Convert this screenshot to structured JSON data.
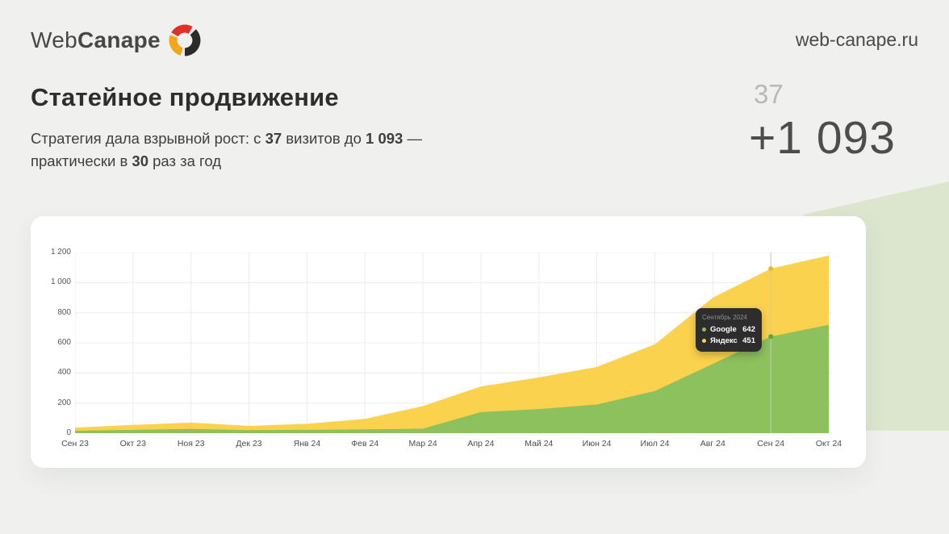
{
  "header": {
    "logo_web": "Web",
    "logo_canape": "Canape",
    "site_url": "web-canape.ru"
  },
  "title": "Статейное продвижение",
  "subtitle": {
    "parts": [
      {
        "text": "Стратегия дала взрывной рост: с ",
        "bold": false
      },
      {
        "text": "37",
        "bold": true
      },
      {
        "text": " визитов до ",
        "bold": false
      },
      {
        "text": "1 093",
        "bold": true
      },
      {
        "text": " — практически в ",
        "bold": false
      },
      {
        "text": "30",
        "bold": true
      },
      {
        "text": " раз за год",
        "bold": false
      }
    ]
  },
  "stats": {
    "before": "37",
    "after": "+1 093"
  },
  "colors": {
    "background": "#f0f1ef",
    "card": "#ffffff",
    "wedge": "#dce5cd",
    "google_area": "#8CC15E",
    "yandex_area": "#FBD24D",
    "google_marker": "#5FA53C",
    "yandex_marker": "#E8BB33",
    "grid": "#ececec",
    "axis_line": "#dedede",
    "crosshair": "#c5c9c2",
    "tooltip_bg": "#2d2d2d"
  },
  "chart_data": {
    "type": "area",
    "stacked": true,
    "title": "",
    "xlabel": "",
    "ylabel": "",
    "grid": true,
    "ylim": [
      0,
      1200
    ],
    "yticks": [
      0,
      200,
      400,
      600,
      800,
      1000,
      1200
    ],
    "ytick_labels": [
      "0",
      "200",
      "400",
      "600",
      "800",
      "1 000",
      "1 200"
    ],
    "categories": [
      "Сен 23",
      "Окт 23",
      "Ноя 23",
      "Дек 23",
      "Янв 24",
      "Фев 24",
      "Мар 24",
      "Апр 24",
      "Май 24",
      "Июн 24",
      "Июл 24",
      "Авг 24",
      "Сен 24",
      "Окт 24"
    ],
    "series": [
      {
        "name": "Google",
        "color": "#8CC15E",
        "values": [
          16,
          22,
          28,
          20,
          22,
          25,
          30,
          140,
          160,
          190,
          280,
          460,
          642,
          720
        ]
      },
      {
        "name": "Яндекс",
        "color": "#FBD24D",
        "values": [
          21,
          33,
          42,
          28,
          40,
          70,
          150,
          170,
          210,
          250,
          310,
          440,
          451,
          460
        ]
      }
    ],
    "tooltip": {
      "month_index": 12,
      "title": "Сентябрь 2024",
      "rows": [
        {
          "label": "Google",
          "value": "642",
          "color": "#8CC15E"
        },
        {
          "label": "Яндекс",
          "value": "451",
          "color": "#FBD24D"
        }
      ]
    }
  }
}
